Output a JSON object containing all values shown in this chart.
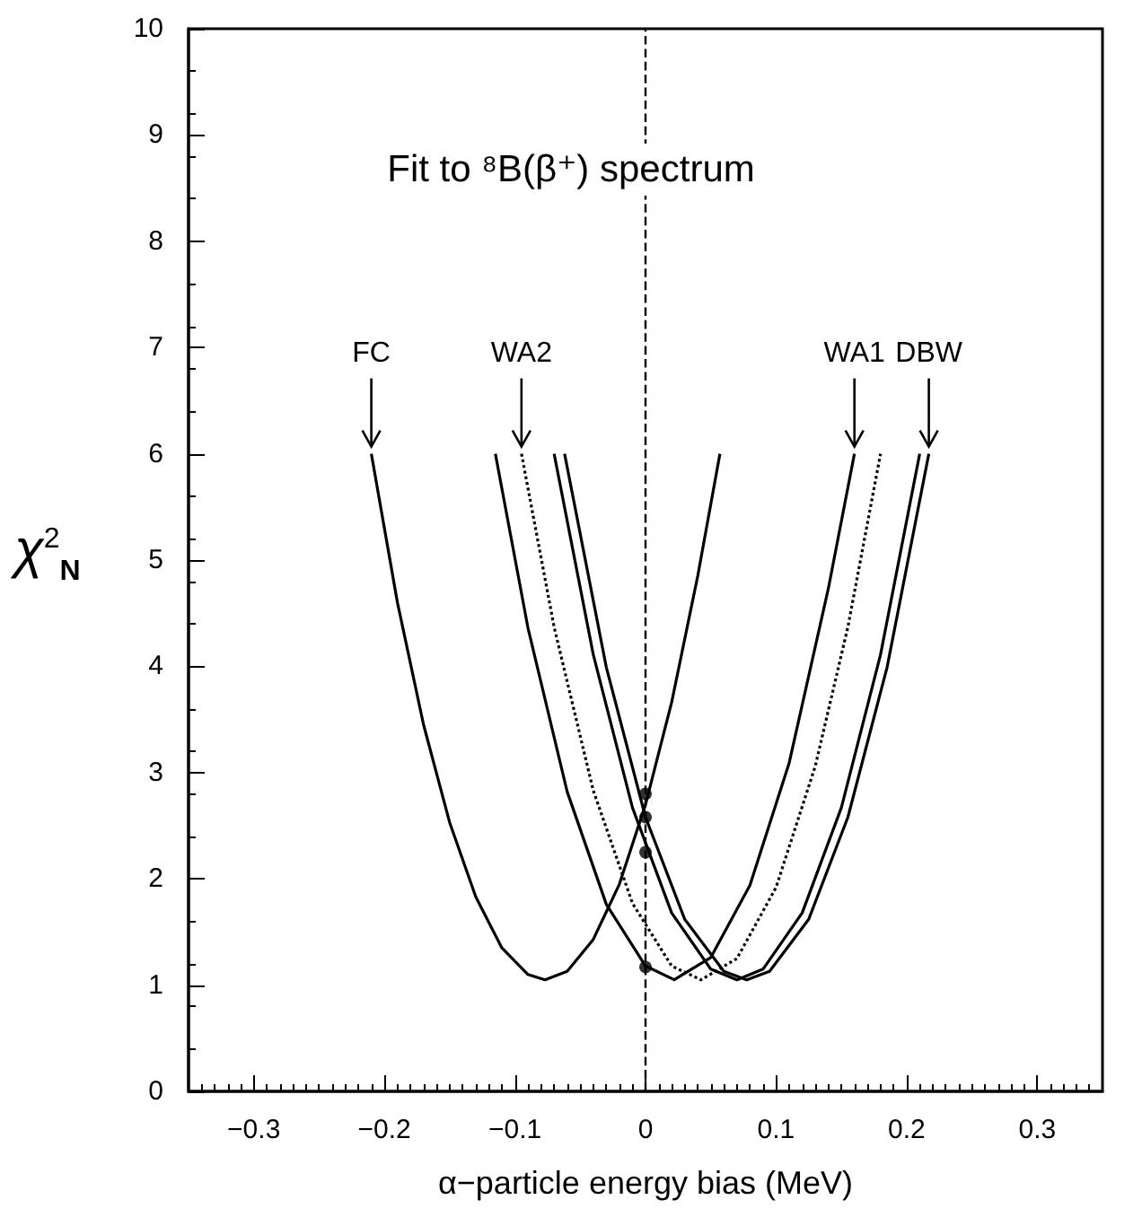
{
  "chart_data": {
    "type": "line",
    "title": "Fit to ⁸B(β⁺) spectrum",
    "xlabel": "α−particle energy bias (MeV)",
    "ylabel": "χ$^{2}$$_{N}$",
    "xlim": [
      -0.35,
      0.35
    ],
    "xticks": [
      -0.3,
      -0.2,
      -0.1,
      0,
      0.1,
      0.2,
      0.3
    ],
    "ylim": [
      0,
      10
    ],
    "yticks": [
      0,
      1,
      2,
      3,
      4,
      5,
      6,
      7,
      8,
      9,
      10
    ],
    "grid": false,
    "marker": "none",
    "series": [
      {
        "color": "#000000",
        "line_style": "solid",
        "x": [
          -0.21,
          -0.19,
          -0.17,
          -0.15,
          -0.13,
          -0.11,
          -0.09,
          -0.077,
          -0.06,
          -0.04,
          -0.02,
          0,
          0.02,
          0.04,
          0.057
        ],
        "values": [
          6.0,
          4.6,
          3.45,
          2.53,
          1.83,
          1.35,
          1.1,
          1.05,
          1.13,
          1.43,
          1.95,
          2.7,
          3.66,
          4.85,
          6.0
        ]
      },
      {
        "color": "#000000",
        "line_style": "solid",
        "x": [
          -0.115,
          -0.09,
          -0.06,
          -0.03,
          0,
          0.022,
          0.05,
          0.08,
          0.11,
          0.14,
          0.16
        ],
        "values": [
          6.0,
          4.36,
          2.82,
          1.76,
          1.18,
          1.05,
          1.26,
          1.94,
          3.09,
          4.73,
          6.0
        ]
      },
      {
        "color": "#000000",
        "line_style": "dotted",
        "x": [
          -0.095,
          -0.07,
          -0.04,
          -0.01,
          0.02,
          0.0425,
          0.07,
          0.1,
          0.13,
          0.155,
          0.18
        ],
        "values": [
          6.0,
          4.37,
          2.83,
          1.77,
          1.18,
          1.05,
          1.25,
          1.92,
          3.06,
          4.37,
          6.0
        ]
      },
      {
        "color": "#000000",
        "line_style": "solid",
        "x": [
          -0.07,
          -0.04,
          -0.01,
          0.02,
          0.05,
          0.07,
          0.09,
          0.12,
          0.15,
          0.18,
          0.21
        ],
        "values": [
          6.0,
          4.11,
          2.67,
          1.68,
          1.15,
          1.05,
          1.15,
          1.68,
          2.67,
          4.11,
          6.0
        ]
      },
      {
        "color": "#000000",
        "line_style": "solid",
        "x": [
          -0.062,
          -0.03,
          0,
          0.03,
          0.06,
          0.0775,
          0.095,
          0.125,
          0.155,
          0.185,
          0.217
        ],
        "values": [
          6.0,
          3.99,
          2.58,
          1.62,
          1.13,
          1.05,
          1.13,
          1.62,
          2.58,
          3.99,
          6.0
        ]
      },
      {
        "type": "scatter",
        "marker": "circle",
        "color": "#000000",
        "x": [
          0,
          0,
          0,
          0
        ],
        "values": [
          2.8,
          2.58,
          2.25,
          1.17
        ]
      }
    ],
    "ref_lines": [
      {
        "axis": "x",
        "value": 0,
        "color": "#000000",
        "line_style": "dashed"
      }
    ],
    "annotations": [
      {
        "text": "FC",
        "x": -0.21,
        "y": 6
      },
      {
        "text": "WA2",
        "x": -0.095,
        "y": 6
      },
      {
        "text": "WA1",
        "x": 0.16,
        "y": 6
      },
      {
        "text": "DBW",
        "x": 0.217,
        "y": 6
      }
    ]
  }
}
